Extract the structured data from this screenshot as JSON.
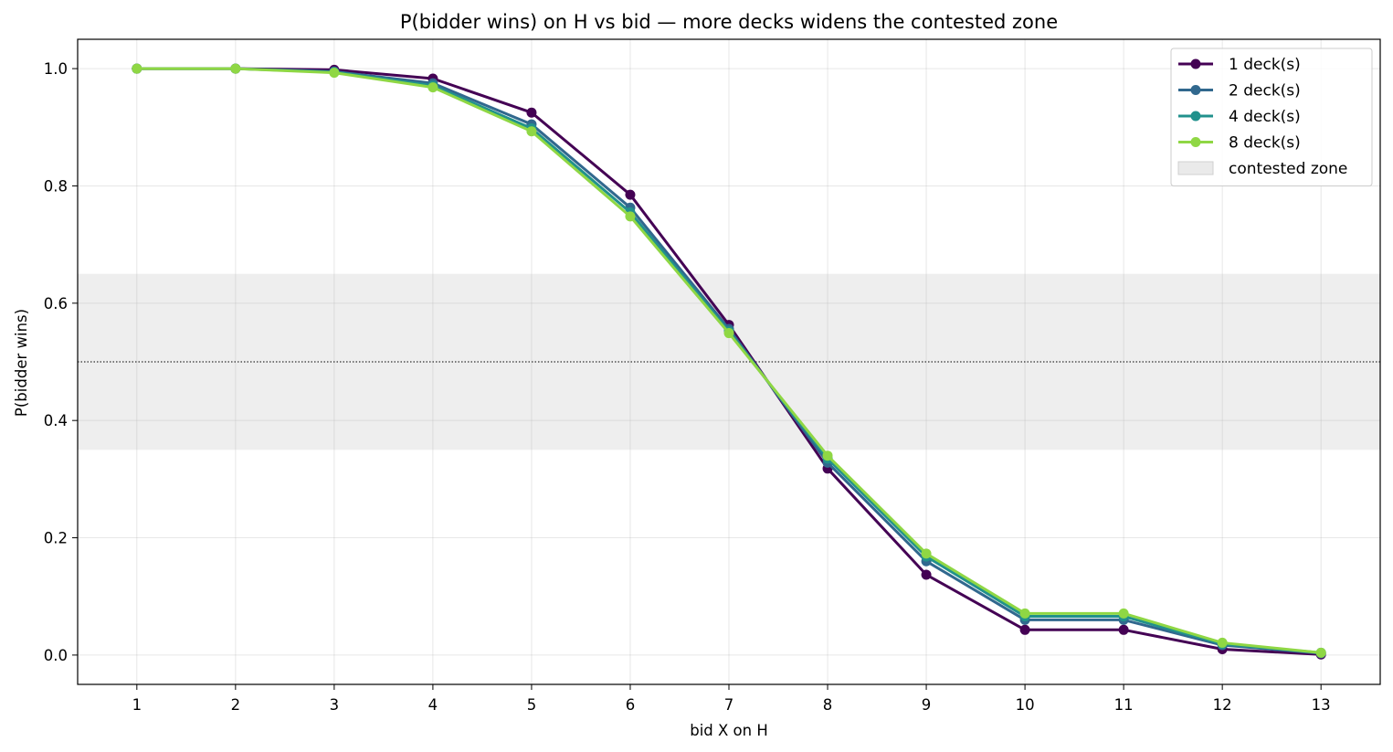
{
  "chart_data": {
    "type": "line",
    "title": "P(bidder wins) on H vs bid — more decks widens the contested zone",
    "xlabel": "bid X on H",
    "ylabel": "P(bidder wins)",
    "x": [
      1,
      2,
      3,
      4,
      5,
      6,
      7,
      8,
      9,
      10,
      11,
      12,
      13
    ],
    "xlim": [
      0.4,
      13.6
    ],
    "ylim": [
      -0.05,
      1.05
    ],
    "yticks": [
      0.0,
      0.2,
      0.4,
      0.6,
      0.8,
      1.0
    ],
    "ytick_labels": [
      "0.0",
      "0.2",
      "0.4",
      "0.6",
      "0.8",
      "1.0"
    ],
    "xtick_labels": [
      "1",
      "2",
      "3",
      "4",
      "5",
      "6",
      "7",
      "8",
      "9",
      "10",
      "11",
      "12",
      "13"
    ],
    "grid": true,
    "legend_position": "top-right",
    "series": [
      {
        "name": "1 deck(s)",
        "color": "#440154",
        "values": [
          1.0,
          1.0,
          0.998,
          0.983,
          0.925,
          0.785,
          0.563,
          0.318,
          0.137,
          0.043,
          0.043,
          0.01,
          0.001
        ]
      },
      {
        "name": "2 deck(s)",
        "color": "#31688e",
        "values": [
          1.0,
          1.0,
          0.995,
          0.975,
          0.905,
          0.763,
          0.556,
          0.328,
          0.16,
          0.06,
          0.06,
          0.017,
          0.003
        ]
      },
      {
        "name": "4 deck(s)",
        "color": "#21918c",
        "values": [
          1.0,
          1.0,
          0.994,
          0.971,
          0.898,
          0.755,
          0.552,
          0.335,
          0.168,
          0.066,
          0.066,
          0.019,
          0.004
        ]
      },
      {
        "name": "8 deck(s)",
        "color": "#8fd744",
        "values": [
          1.0,
          1.0,
          0.993,
          0.968,
          0.893,
          0.748,
          0.549,
          0.34,
          0.173,
          0.071,
          0.071,
          0.021,
          0.004
        ]
      }
    ],
    "contested_zone": {
      "label": "contested zone",
      "y_range": [
        0.35,
        0.65
      ],
      "color": "#d9d9d9"
    },
    "reference_line": {
      "y": 0.5,
      "style": "dotted",
      "color": "#000000"
    }
  }
}
